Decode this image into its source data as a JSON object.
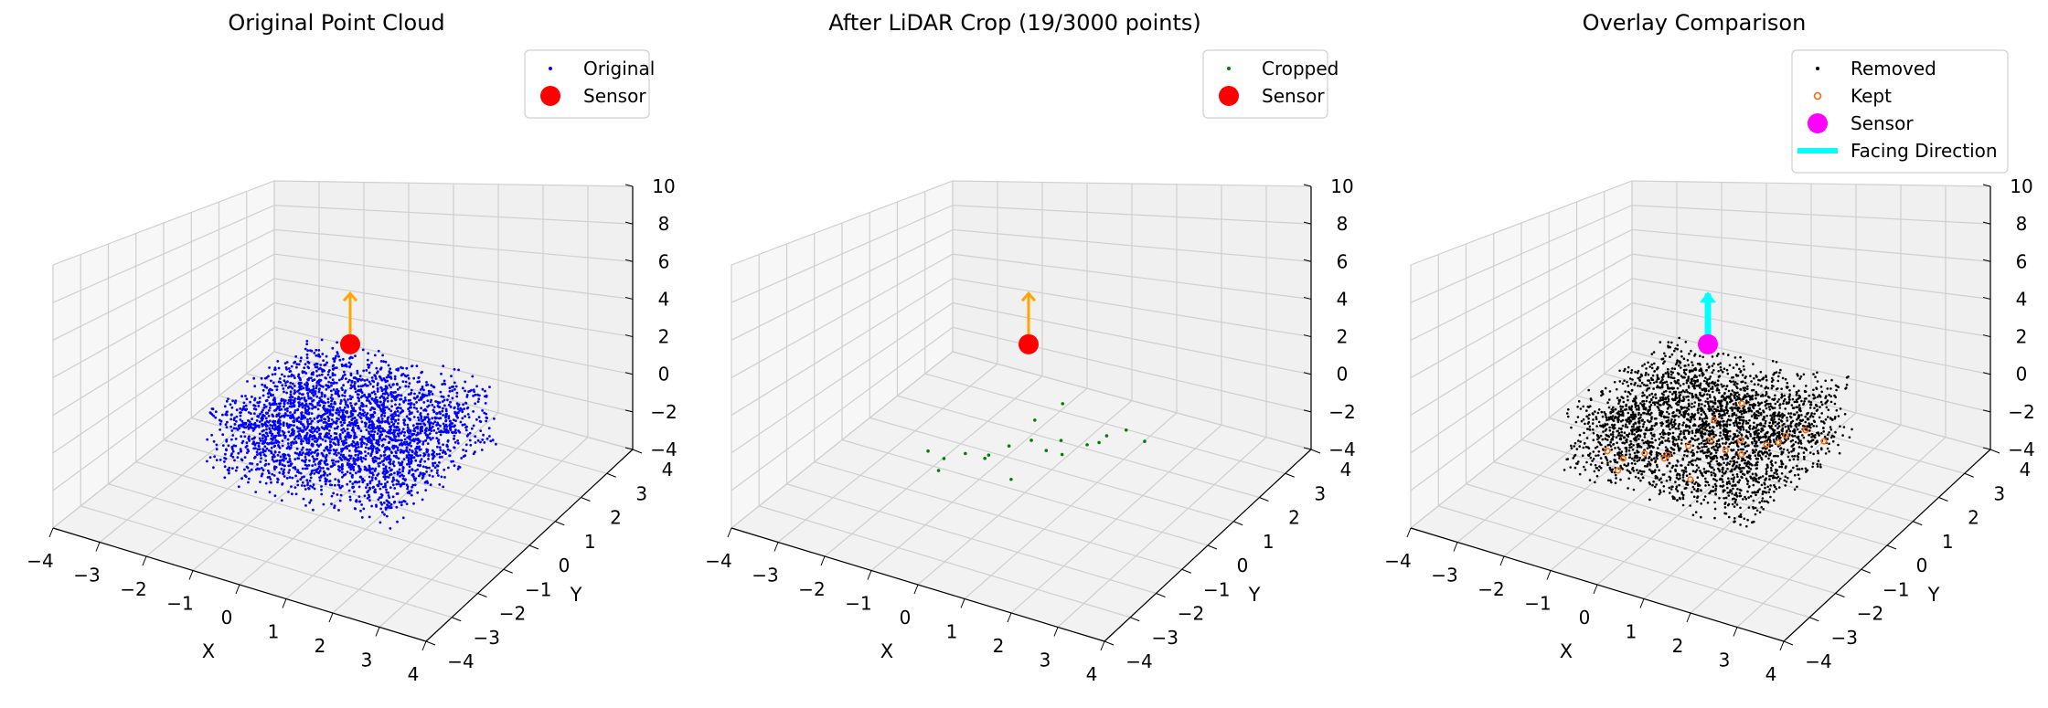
{
  "chart_data": [
    {
      "type": "scatter",
      "title": "Original Point Cloud",
      "xlabel": "X",
      "ylabel": "Y",
      "zlabel": "",
      "xlim": [
        -4,
        4
      ],
      "ylim": [
        -4,
        4
      ],
      "zlim": [
        -4,
        10
      ],
      "xticks": [
        "−4",
        "−3",
        "−2",
        "−1",
        "0",
        "1",
        "2",
        "3",
        "4"
      ],
      "yticks": [
        "−4",
        "−3",
        "−2",
        "−1",
        "0",
        "1",
        "2",
        "3",
        "4"
      ],
      "zticks": [
        "−4",
        "−2",
        "0",
        "2",
        "4",
        "6",
        "8",
        "10"
      ],
      "grid": true,
      "legend_position": "upper right",
      "series": [
        {
          "name": "Original",
          "color": "#0000ff",
          "marker": "dot",
          "distribution": "uniform box",
          "count": 3000,
          "x_range": [
            -2,
            2
          ],
          "y_range": [
            -2,
            2
          ],
          "z_range": [
            -2,
            2
          ]
        },
        {
          "name": "Sensor",
          "color": "#ff0000",
          "marker": "large circle",
          "points": [
            [
              0,
              0,
              5
            ]
          ]
        }
      ],
      "arrow": {
        "color": "#ffa500",
        "from": [
          0,
          0,
          5
        ],
        "to": [
          0,
          0,
          8
        ]
      }
    },
    {
      "type": "scatter",
      "title": "After LiDAR Crop (19/3000 points)",
      "xlabel": "X",
      "ylabel": "Y",
      "zlabel": "",
      "xlim": [
        -4,
        4
      ],
      "ylim": [
        -4,
        4
      ],
      "zlim": [
        -4,
        10
      ],
      "xticks": [
        "−4",
        "−3",
        "−2",
        "−1",
        "0",
        "1",
        "2",
        "3",
        "4"
      ],
      "yticks": [
        "−4",
        "−3",
        "−2",
        "−1",
        "0",
        "1",
        "2",
        "3",
        "4"
      ],
      "zticks": [
        "−4",
        "−2",
        "0",
        "2",
        "4",
        "6",
        "8",
        "10"
      ],
      "grid": true,
      "legend_position": "upper right",
      "series": [
        {
          "name": "Cropped",
          "color": "#008000",
          "marker": "dot",
          "points": [
            [
              -1.8,
              -0.6,
              -2.0
            ],
            [
              -1.4,
              -0.7,
              -2.0
            ],
            [
              -1.0,
              -0.6,
              -1.5
            ],
            [
              -0.7,
              -0.4,
              -1.8
            ],
            [
              -0.5,
              -0.6,
              -1.2
            ],
            [
              -0.3,
              -0.2,
              -1.0
            ],
            [
              0.0,
              0.1,
              -0.8
            ],
            [
              0.2,
              0.3,
              -1.5
            ],
            [
              0.4,
              0.5,
              -1.0
            ],
            [
              0.6,
              0.2,
              -1.3
            ],
            [
              0.9,
              0.6,
              -1.0
            ],
            [
              1.2,
              0.8,
              -0.5
            ],
            [
              1.5,
              1.0,
              -0.2
            ],
            [
              -1.1,
              -1.4,
              -1.6
            ],
            [
              0.1,
              -0.8,
              -1.9
            ],
            [
              0.8,
              1.2,
              -1.7
            ],
            [
              -0.1,
              1.4,
              -0.3
            ],
            [
              1.6,
              1.5,
              -1.4
            ],
            [
              -0.4,
              0.9,
              -0.9
            ]
          ]
        },
        {
          "name": "Sensor",
          "color": "#ff0000",
          "marker": "large circle",
          "points": [
            [
              0,
              0,
              5
            ]
          ]
        }
      ],
      "arrow": {
        "color": "#ffa500",
        "from": [
          0,
          0,
          5
        ],
        "to": [
          0,
          0,
          8
        ]
      }
    },
    {
      "type": "scatter",
      "title": "Overlay Comparison",
      "xlabel": "X",
      "ylabel": "Y",
      "zlabel": "",
      "xlim": [
        -4,
        4
      ],
      "ylim": [
        -4,
        4
      ],
      "zlim": [
        -4,
        10
      ],
      "xticks": [
        "−4",
        "−3",
        "−2",
        "−1",
        "0",
        "1",
        "2",
        "3",
        "4"
      ],
      "yticks": [
        "−4",
        "−3",
        "−2",
        "−1",
        "0",
        "1",
        "2",
        "3",
        "4"
      ],
      "zticks": [
        "−4",
        "−2",
        "0",
        "2",
        "4",
        "6",
        "8",
        "10"
      ],
      "grid": true,
      "legend_position": "upper right",
      "series": [
        {
          "name": "Removed",
          "color": "#000000",
          "marker": "dot",
          "distribution": "uniform box",
          "count": 2981,
          "x_range": [
            -2,
            2
          ],
          "y_range": [
            -2,
            2
          ],
          "z_range": [
            -2,
            2
          ]
        },
        {
          "name": "Kept",
          "color": "#ff6600",
          "marker": "hollow circle",
          "same_points_as": "After LiDAR Crop (19/3000 points) / Cropped"
        },
        {
          "name": "Sensor",
          "color": "#ff00ff",
          "marker": "large circle",
          "points": [
            [
              0,
              0,
              5
            ]
          ]
        },
        {
          "name": "Facing Direction",
          "color": "#00ffff",
          "marker": "thick line",
          "points": [
            [
              0,
              0,
              5
            ],
            [
              0,
              0,
              8
            ]
          ]
        }
      ]
    }
  ]
}
